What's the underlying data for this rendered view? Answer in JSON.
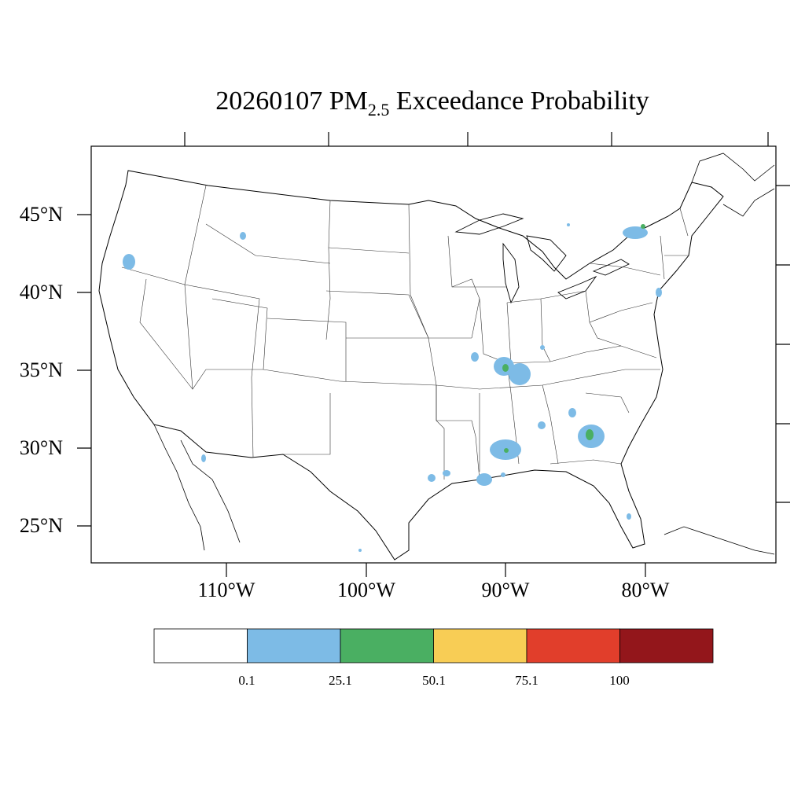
{
  "title": {
    "main": "20260107 PM",
    "sub": "2.5",
    "rest": " Exceedance Probability"
  },
  "lat_labels": [
    "45°N",
    "40°N",
    "35°N",
    "30°N",
    "25°N"
  ],
  "lon_labels": [
    "110°W",
    "100°W",
    "90°W",
    "80°W"
  ],
  "colorbar": {
    "ticks": [
      "0.1",
      "25.1",
      "50.1",
      "75.1",
      "100"
    ],
    "colors": [
      "#ffffff",
      "#7dbbe6",
      "#4aaf62",
      "#f8cd55",
      "#e13e2b",
      "#93161b"
    ]
  },
  "probability_colors": {
    "low": "#7dbbe6",
    "medium": "#4aaf62"
  }
}
